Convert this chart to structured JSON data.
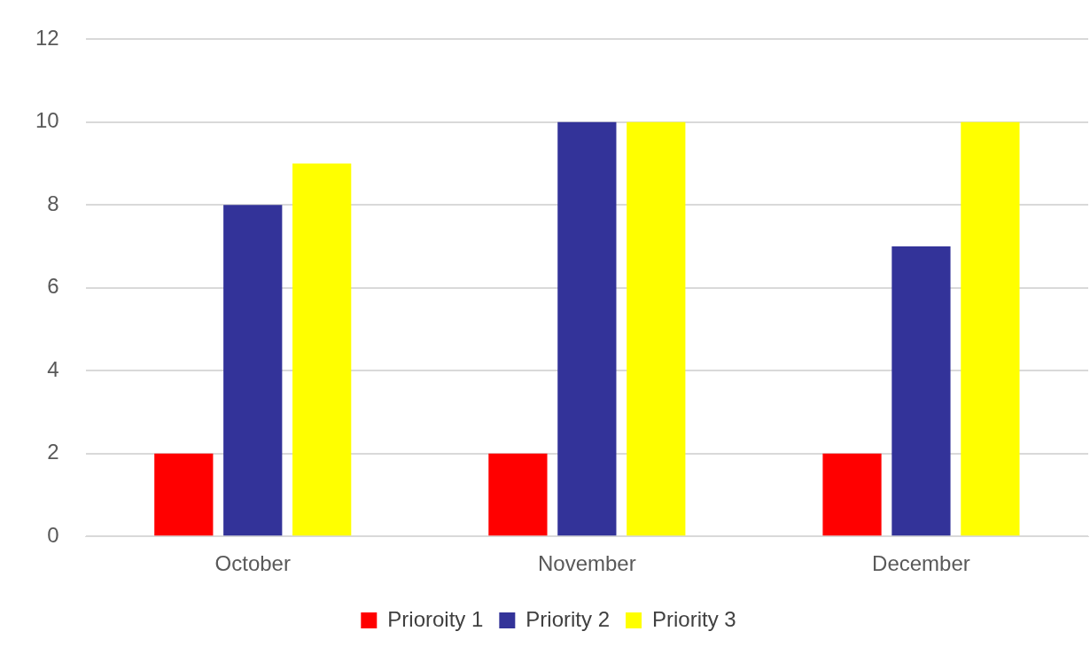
{
  "chart_data": {
    "type": "bar",
    "categories": [
      "October",
      "November",
      "December"
    ],
    "series": [
      {
        "name": "Prioroity 1",
        "color": "#ff0000",
        "values": [
          2,
          2,
          2
        ]
      },
      {
        "name": "Priority 2",
        "color": "#333399",
        "values": [
          8,
          10,
          7
        ]
      },
      {
        "name": "Priority 3",
        "color": "#ffff00",
        "values": [
          9,
          10,
          10
        ]
      }
    ],
    "ylim": [
      0,
      12
    ],
    "yticks": [
      0,
      2,
      4,
      6,
      8,
      10,
      12
    ],
    "grid": "y",
    "legend": "bottom"
  }
}
